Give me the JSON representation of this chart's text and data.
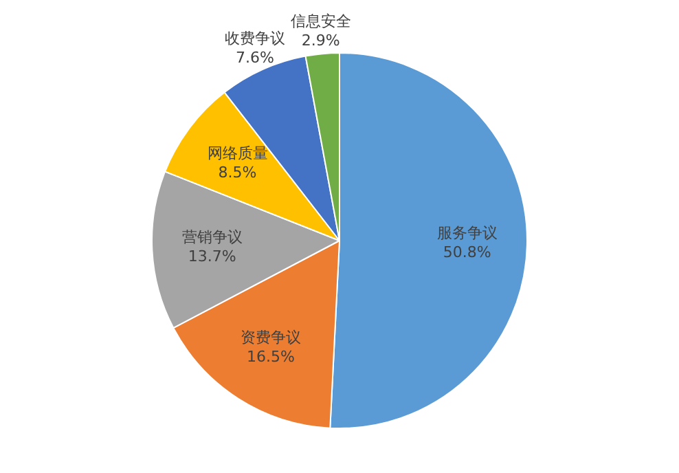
{
  "chart_data": {
    "type": "pie",
    "categories": [
      "服务争议",
      "资费争议",
      "营销争议",
      "网络质量",
      "收费争议",
      "信息安全"
    ],
    "values": [
      50.8,
      16.5,
      13.7,
      8.5,
      7.6,
      2.9
    ],
    "value_labels": [
      "50.8%",
      "16.5%",
      "13.7%",
      "8.5%",
      "7.6%",
      "2.9%"
    ],
    "colors": [
      "#5b9bd5",
      "#ed7d31",
      "#a5a5a5",
      "#ffc000",
      "#4472c4",
      "#70ad47"
    ],
    "legend": false
  }
}
